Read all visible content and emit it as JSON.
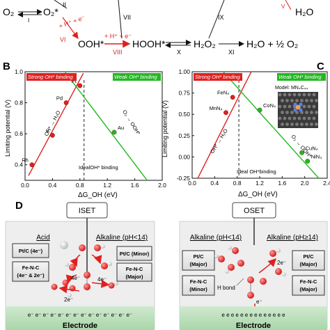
{
  "scheme": {
    "o2": "O₂",
    "o2_star": "O₂*",
    "ooh_star": "OOH*",
    "hooh_star": "HOOH*",
    "h2o2": "H₂O₂",
    "products": "H₂O + ½ O₂",
    "h2o": "H₂O",
    "proton_electron": "+ H⁺ + e⁻",
    "roman": {
      "i": "I",
      "ii": "II",
      "vi": "VI",
      "vii": "VII",
      "viii": "VIII",
      "ix": "IX",
      "x": "X",
      "xi": "XI",
      "v": "V"
    }
  },
  "panel_b": {
    "label": "B",
    "strong_label": "Strong OH* binding",
    "weak_label": "Weak OH* binding",
    "ideal_label": "IdealOH* binding",
    "left_line_label": "OH* → H₂O",
    "right_line_label": "O₂ → OOH*",
    "xlabel": "ΔG_OH (eV)",
    "ylabel": "Limiting potential (V)"
  },
  "panel_c": {
    "label": "C",
    "strong_label": "Strong OH* binding",
    "weak_label": "Weak OH* binding",
    "ideal_label": "Ideal OH*binding",
    "left_line_label": "OH* → H₂O",
    "right_line_label": "O₂ → OOH*",
    "model_label": "Model: MN₄C₄₄",
    "xlabel": "ΔG_OH (eV)",
    "ylabel": "Limiting potential (V)"
  },
  "panel_d": {
    "label": "D",
    "iset": {
      "title": "ISET",
      "acid": "Acid",
      "alkaline": "Alkaline (pH<14)",
      "box_left_1": [
        "Pt/C (4e⁻)"
      ],
      "box_left_2": [
        "Fe-N-C",
        "(4e⁻ & 2e⁻)"
      ],
      "box_right_1": [
        "Pt/C (Minor)"
      ],
      "box_right_2": [
        "Fe-N-C",
        "(Major)"
      ],
      "e4a": "4e⁻",
      "e4b": "4e⁻",
      "e2": "2e⁻",
      "electrons": "e⁻ e⁻ e⁻ e⁻ e⁻ e⁻ e⁻ e⁻ e⁻ e⁻ e⁻ e⁻ e⁻ e⁻",
      "electrode": "Electrode"
    },
    "oset": {
      "title": "OSET",
      "alkaline_lt": "Alkaline (pH<14)",
      "alkaline_ge": "Alkaline (pH≥14)",
      "box_left_1": [
        "Pt/C",
        "(Major)"
      ],
      "box_left_2": [
        "Fe-N-C",
        "(Minor)"
      ],
      "box_right_1": [
        "Pt/C",
        "(Major)"
      ],
      "box_right_2": [
        "Fe-N-C",
        "(Major)"
      ],
      "hbond": "H bond",
      "e2": "2e⁻",
      "e_single": "e⁻",
      "electrons": "e e e e e e e e e e e e e e",
      "electrode": "Electrode"
    }
  },
  "chart_data": [
    {
      "type": "scatter",
      "xlim": [
        0,
        2.0
      ],
      "ylim": [
        0.3,
        1.0
      ],
      "x_ticks": [
        0,
        0.4,
        0.8,
        1.2,
        1.6,
        2.0
      ],
      "y_ticks": [
        0.4,
        0.6,
        0.8,
        1.0
      ],
      "x_tick_labels": [
        "0.0",
        "0.4",
        "0.8",
        "1.2",
        "1.6",
        "2.0"
      ],
      "y_tick_labels": [
        "0.4",
        "0.6",
        "0.8",
        "1.0"
      ],
      "ideal_x": 0.86,
      "left_line": {
        "x": [
          0.05,
          0.85
        ],
        "y": [
          0.33,
          0.99
        ],
        "color": "#e02020"
      },
      "right_line": {
        "x": [
          0.58,
          1.78
        ],
        "y": [
          1.0,
          0.3
        ],
        "color": "#22b822"
      },
      "points": [
        {
          "label": "Rh",
          "x": 0.1,
          "y": 0.4,
          "color": "#e02020"
        },
        {
          "label": "Ir",
          "x": 0.4,
          "y": 0.59,
          "color": "#e02020"
        },
        {
          "label": "Pd",
          "x": 0.6,
          "y": 0.8,
          "color": "#e02020"
        },
        {
          "label": "Pt",
          "x": 0.8,
          "y": 0.91,
          "color": "#e02020"
        },
        {
          "label": "Au",
          "x": 1.3,
          "y": 0.61,
          "color": "#22b822"
        }
      ]
    },
    {
      "type": "scatter",
      "xlim": [
        0,
        2.4
      ],
      "ylim": [
        -0.25,
        1.0
      ],
      "x_ticks": [
        0,
        0.4,
        0.8,
        1.2,
        1.6,
        2.0,
        2.4
      ],
      "y_ticks": [
        -0.25,
        0,
        0.25,
        0.5,
        0.75,
        1.0
      ],
      "x_tick_labels": [
        "0.0",
        "0.4",
        "0.8",
        "1.2",
        "1.6",
        "2.0",
        "2.4"
      ],
      "y_tick_labels": [
        "-0.25",
        "0.00",
        "0.25",
        "0.50",
        "0.75",
        "1.00"
      ],
      "ideal_x": 0.83,
      "left_line": {
        "x": [
          0.1,
          1.05
        ],
        "y": [
          -0.25,
          1.0
        ],
        "color": "#e02020"
      },
      "right_line": {
        "x": [
          0.55,
          2.25
        ],
        "y": [
          1.0,
          -0.25
        ],
        "color": "#22b822"
      },
      "points": [
        {
          "label": "FeN₄",
          "x": 0.72,
          "y": 0.7,
          "color": "#e02020"
        },
        {
          "label": "MnN₄",
          "x": 0.6,
          "y": 0.52,
          "color": "#e02020"
        },
        {
          "label": "CoN₄",
          "x": 1.2,
          "y": 0.55,
          "color": "#22b822"
        },
        {
          "label": "CuN₄",
          "x": 1.95,
          "y": 0.05,
          "color": "#22b822"
        },
        {
          "label": "NiN₄",
          "x": 2.05,
          "y": -0.05,
          "color": "#22b822"
        }
      ]
    }
  ]
}
